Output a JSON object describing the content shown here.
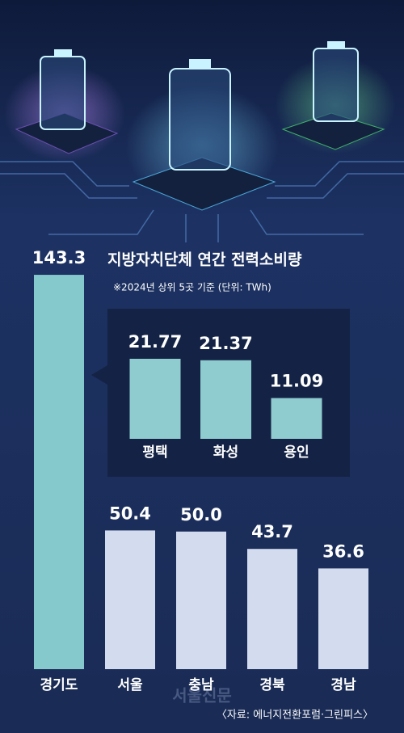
{
  "chart_data": [
    {
      "type": "bar",
      "title": "지방자치단체 연간 전력소비량",
      "subtitle": "※2024년 상위 5곳 기준  (단위: TWh)",
      "source": "〈자료: 에너지전환포럼·그린피스〉",
      "watermark": "서울신문",
      "categories": [
        "경기도",
        "서울",
        "충남",
        "경북",
        "경남"
      ],
      "values": [
        143.3,
        50.4,
        50.0,
        43.7,
        36.6
      ],
      "value_labels": [
        "143.3",
        "50.4",
        "50.0",
        "43.7",
        "36.6"
      ],
      "colors": [
        "#86c9cc",
        "#d3dbef",
        "#d3dbef",
        "#d3dbef",
        "#d3dbef"
      ]
    },
    {
      "type": "bar",
      "categories": [
        "평택",
        "화성",
        "용인"
      ],
      "values": [
        21.77,
        21.37,
        11.09
      ],
      "colors": [
        "#8fcccf",
        "#8fcccf",
        "#8fcccf"
      ]
    }
  ]
}
